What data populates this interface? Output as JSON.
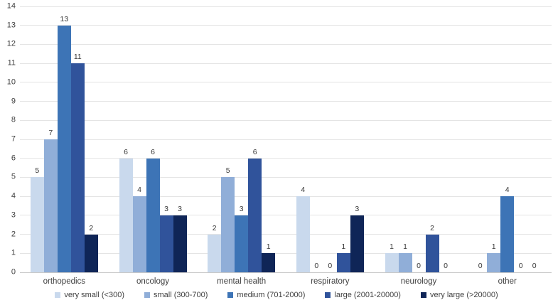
{
  "chart_data": {
    "type": "bar",
    "title": "",
    "categories": [
      "orthopedics",
      "oncology",
      "mental health",
      "respiratory",
      "neurology",
      "other"
    ],
    "series": [
      {
        "name": "very small (<300)",
        "color": "#c9d9ed",
        "values": [
          5,
          6,
          2,
          4,
          1,
          0
        ]
      },
      {
        "name": "small (300-700)",
        "color": "#90aed8",
        "values": [
          7,
          4,
          5,
          0,
          1,
          1
        ]
      },
      {
        "name": "medium (701-2000)",
        "color": "#3d74b6",
        "values": [
          13,
          6,
          3,
          0,
          0,
          4
        ]
      },
      {
        "name": "large (2001-20000)",
        "color": "#30539b",
        "values": [
          11,
          3,
          6,
          1,
          2,
          0
        ]
      },
      {
        "name": "very large (>20000)",
        "color": "#0f2557",
        "values": [
          2,
          3,
          1,
          3,
          0,
          0
        ]
      }
    ],
    "ylim": [
      0,
      14
    ],
    "ytick_step": 1,
    "yticks": [
      0,
      1,
      2,
      3,
      4,
      5,
      6,
      7,
      8,
      9,
      10,
      11,
      12,
      13,
      14
    ],
    "grid": "horizontal",
    "gridline_color": "#e4e4e4",
    "legend_position": "bottom",
    "data_labels": true,
    "background": "#ffffff"
  }
}
